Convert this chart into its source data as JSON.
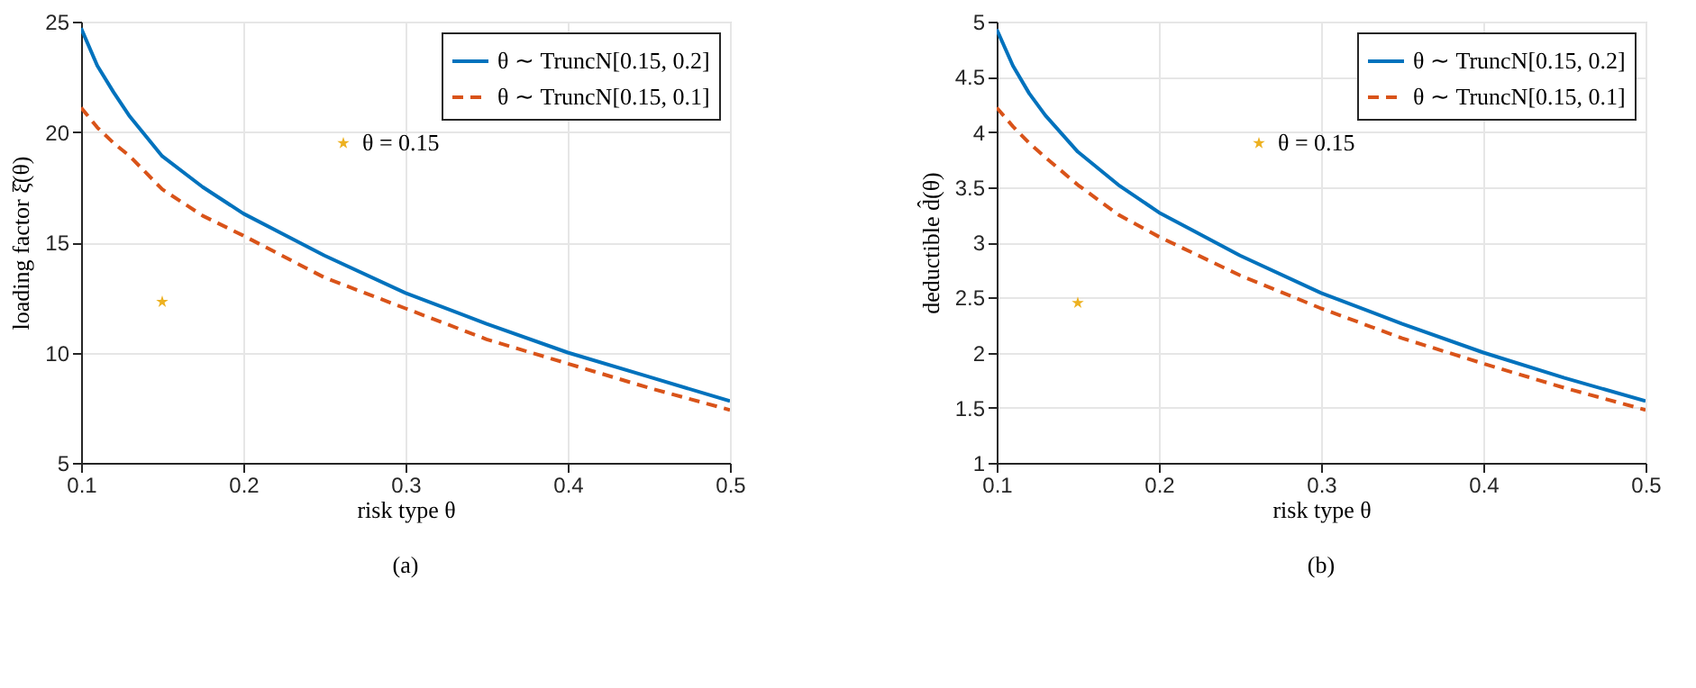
{
  "chart_data": [
    {
      "type": "line",
      "xlabel": "risk type θ",
      "ylabel": "loading factor ξ̂(θ)",
      "xlim": [
        0.1,
        0.5
      ],
      "xticks": [
        0.1,
        0.2,
        0.3,
        0.4,
        0.5
      ],
      "ylim": [
        5,
        25
      ],
      "yticks": [
        5,
        10,
        15,
        20,
        25
      ],
      "grid": true,
      "legend": "top right",
      "annotations": [
        "(a)"
      ],
      "series": [
        {
          "name": "θ ∼ TruncN[0.15, 0.2]",
          "color": "#0072bd",
          "line_style": "solid",
          "x": [
            0.1,
            0.11,
            0.12,
            0.13,
            0.15,
            0.175,
            0.2,
            0.25,
            0.3,
            0.35,
            0.4,
            0.45,
            0.5
          ],
          "values": [
            24.7,
            23.0,
            21.8,
            20.7,
            18.9,
            17.5,
            16.3,
            14.4,
            12.7,
            11.3,
            10.0,
            8.9,
            7.8
          ]
        },
        {
          "name": "θ ∼ TruncN[0.15, 0.1]",
          "color": "#d95319",
          "line_style": "dashed",
          "x": [
            0.1,
            0.11,
            0.12,
            0.13,
            0.15,
            0.175,
            0.2,
            0.25,
            0.3,
            0.35,
            0.4,
            0.45,
            0.5
          ],
          "values": [
            21.1,
            20.2,
            19.5,
            18.9,
            17.4,
            16.2,
            15.3,
            13.4,
            12.0,
            10.6,
            9.5,
            8.4,
            7.4
          ]
        },
        {
          "name": "θ = 0.15",
          "color": "#edb120",
          "type": "scatter",
          "marker": "star",
          "x": [
            0.15
          ],
          "values": [
            12.3
          ]
        }
      ]
    },
    {
      "type": "line",
      "xlabel": "risk type θ",
      "ylabel": "deductible d̂(θ)",
      "xlim": [
        0.1,
        0.5
      ],
      "xticks": [
        0.1,
        0.2,
        0.3,
        0.4,
        0.5
      ],
      "ylim": [
        1,
        5
      ],
      "yticks": [
        1,
        1.5,
        2,
        2.5,
        3,
        3.5,
        4,
        4.5,
        5
      ],
      "grid": true,
      "legend": "top right",
      "annotations": [
        "(b)"
      ],
      "series": [
        {
          "name": "θ ∼ TruncN[0.15, 0.2]",
          "color": "#0072bd",
          "line_style": "solid",
          "x": [
            0.1,
            0.11,
            0.12,
            0.13,
            0.15,
            0.175,
            0.2,
            0.25,
            0.3,
            0.35,
            0.4,
            0.45,
            0.5
          ],
          "values": [
            4.93,
            4.6,
            4.35,
            4.15,
            3.82,
            3.52,
            3.27,
            2.88,
            2.54,
            2.26,
            2.0,
            1.77,
            1.56
          ]
        },
        {
          "name": "θ ∼ TruncN[0.15, 0.1]",
          "color": "#d95319",
          "line_style": "dashed",
          "x": [
            0.1,
            0.11,
            0.12,
            0.13,
            0.15,
            0.175,
            0.2,
            0.25,
            0.3,
            0.35,
            0.4,
            0.45,
            0.5
          ],
          "values": [
            4.22,
            4.05,
            3.9,
            3.77,
            3.52,
            3.25,
            3.05,
            2.7,
            2.4,
            2.13,
            1.9,
            1.68,
            1.48
          ]
        },
        {
          "name": "θ = 0.15",
          "color": "#edb120",
          "type": "scatter",
          "marker": "star",
          "x": [
            0.15
          ],
          "values": [
            2.45
          ]
        }
      ]
    }
  ]
}
